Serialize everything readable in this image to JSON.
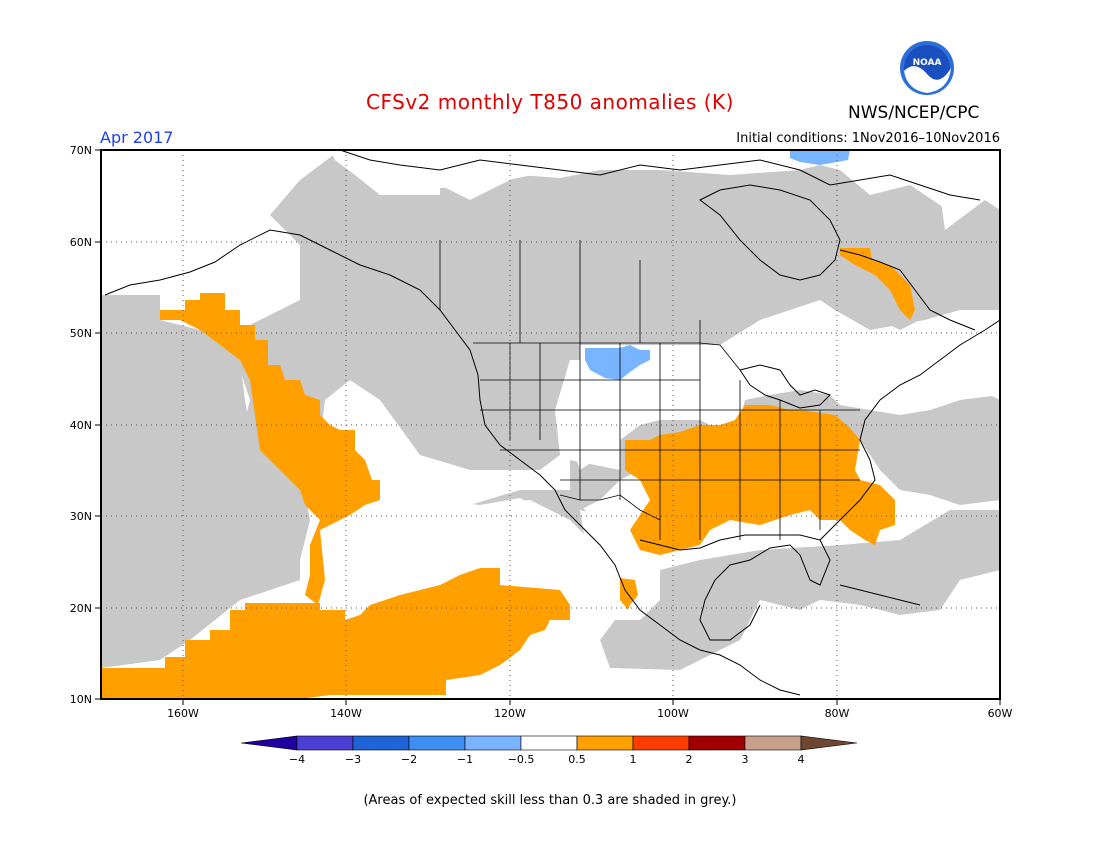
{
  "title": "CFSv2 monthly T850 anomalies (K)",
  "agency": "NWS/NCEP/CPC",
  "logo_text": "NOAA",
  "valid_month": "Apr 2017",
  "initial_conditions": "Initial conditions: 1Nov2016–10Nov2016",
  "map": {
    "lon_range": [
      -170,
      -60
    ],
    "lat_range": [
      10,
      70
    ],
    "lat_labels": [
      "70N",
      "60N",
      "50N",
      "40N",
      "30N",
      "20N",
      "10N"
    ],
    "lon_labels": [
      "160W",
      "140W",
      "120W",
      "100W",
      "80W",
      "60W"
    ],
    "skill_mask_color": "#c8c8c8",
    "anomaly_colors": {
      "warm_0.5_1": "#ff9f00",
      "cool_-1_-0.5": "#78b4ff"
    }
  },
  "colorbar": {
    "labels": [
      "−4",
      "−3",
      "−2",
      "−1",
      "−0.5",
      "0.5",
      "1",
      "2",
      "3",
      "4"
    ],
    "colors": [
      "#1e00a0",
      "#4a3fd0",
      "#1f64d6",
      "#3c8ff0",
      "#78b4ff",
      "#ffffff",
      "#ff9f00",
      "#ff3c00",
      "#a00000",
      "#c8a08c",
      "#6e4632"
    ]
  },
  "footnote": "(Areas of expected skill less than 0.3 are shaded in grey.)"
}
